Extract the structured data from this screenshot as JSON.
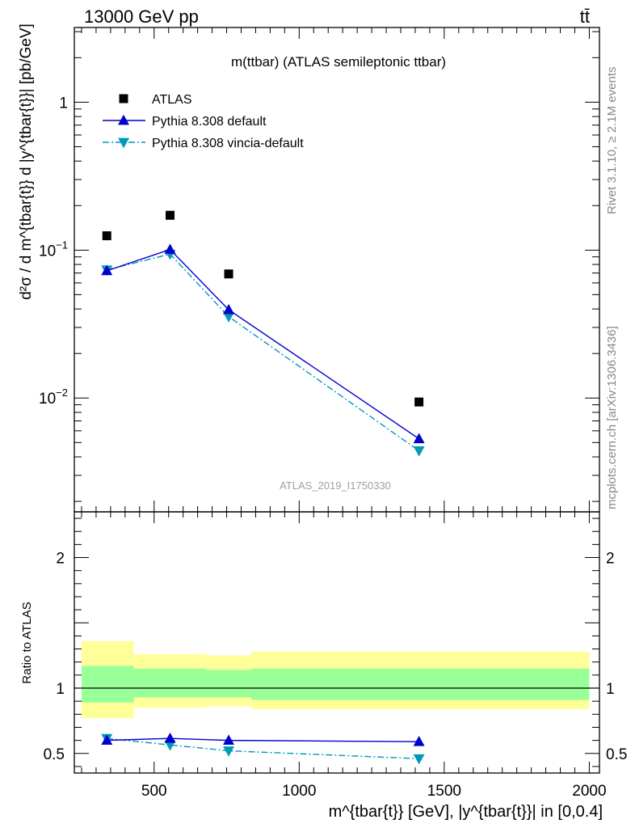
{
  "header": {
    "energy_label": "13000 GeV pp",
    "process_label": "tt̄"
  },
  "side_labels": {
    "rivet": "Rivet 3.1.10, ≥ 2.1M events",
    "mcplots": "mcplots.cern.ch [arXiv:1306.3436]"
  },
  "colors": {
    "data": "#000000",
    "pythia_default": "#0000cc",
    "pythia_vincia": "#0099bb",
    "band_inner": "#99ff99",
    "band_outer": "#ffff99"
  },
  "chart_data": [
    {
      "type": "scatter",
      "panel": "main",
      "title": "m(ttbar) (ATLAS semileptonic ttbar)",
      "analysis_label": "ATLAS_2019_I1750330",
      "ylabel": "d²σ / d m^{tbar{t}} d |y^{tbar{t}}| [pb/GeV]",
      "yscale": "log",
      "ylim": [
        0.0017,
        3.2
      ],
      "xlim": [
        225,
        2035
      ],
      "y_tick_labels": [
        "10^-2",
        "10^-1",
        "1"
      ],
      "legend_position": "top-left",
      "series": [
        {
          "name": "ATLAS",
          "marker": "square",
          "x": [
            337,
            555,
            757,
            1413
          ],
          "y": [
            0.125,
            0.172,
            0.069,
            0.0094
          ]
        },
        {
          "name": "Pythia 8.308 default",
          "marker": "triangle-up",
          "line": "solid",
          "x": [
            337,
            555,
            757,
            1413
          ],
          "y": [
            0.0725,
            0.101,
            0.0395,
            0.0053
          ]
        },
        {
          "name": "Pythia 8.308 vincia-default",
          "marker": "triangle-down",
          "line": "dash-dot",
          "x": [
            337,
            555,
            757,
            1413
          ],
          "y": [
            0.0735,
            0.094,
            0.0355,
            0.0044
          ]
        }
      ]
    },
    {
      "type": "line",
      "panel": "ratio",
      "ylabel": "Ratio to ATLAS",
      "xlabel": "m^{tbar{t}} [GeV], |y^{tbar{t}}| in [0,0.4]",
      "ylim": [
        0.35,
        2.35
      ],
      "xlim": [
        225,
        2035
      ],
      "x_ticks": [
        500,
        1000,
        1500,
        2000
      ],
      "y_ticks": [
        0.5,
        1,
        2
      ],
      "reference_line": 1,
      "uncertainty_bands": [
        {
          "x_from": 250,
          "x_to": 430,
          "inner": [
            0.89,
            1.17
          ],
          "outer": [
            0.77,
            1.36
          ]
        },
        {
          "x_from": 430,
          "x_to": 680,
          "inner": [
            0.93,
            1.15
          ],
          "outer": [
            0.85,
            1.26
          ]
        },
        {
          "x_from": 680,
          "x_to": 835,
          "inner": [
            0.93,
            1.14
          ],
          "outer": [
            0.86,
            1.25
          ]
        },
        {
          "x_from": 835,
          "x_to": 2000,
          "inner": [
            0.91,
            1.15
          ],
          "outer": [
            0.84,
            1.28
          ]
        }
      ],
      "series": [
        {
          "name": "Pythia 8.308 default",
          "marker": "triangle-up",
          "line": "solid",
          "x": [
            337,
            555,
            757,
            1413
          ],
          "y": [
            0.6,
            0.615,
            0.6,
            0.59
          ]
        },
        {
          "name": "Pythia 8.308 vincia-default",
          "marker": "triangle-down",
          "line": "dash-dot",
          "x": [
            337,
            555,
            757,
            1413
          ],
          "y": [
            0.615,
            0.565,
            0.52,
            0.46
          ]
        }
      ]
    }
  ]
}
